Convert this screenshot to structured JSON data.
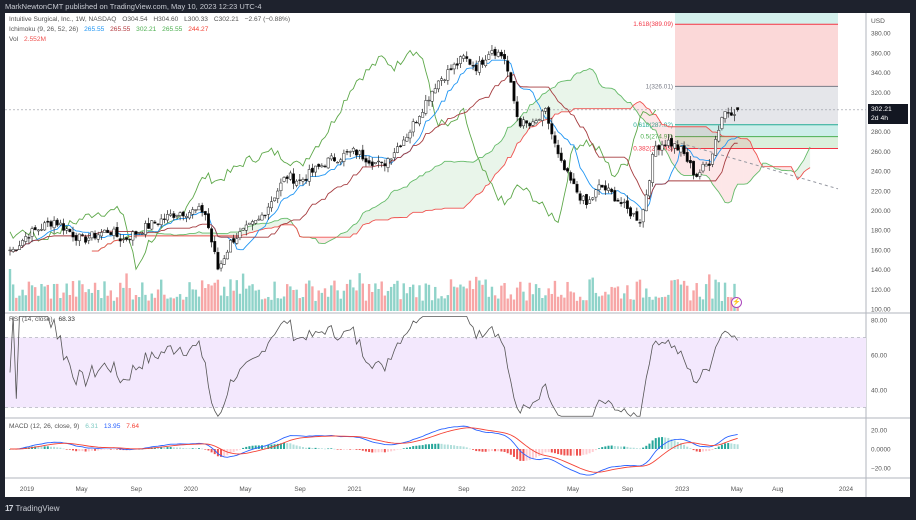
{
  "header": {
    "published_text": "MarkNewtonCMT published on TradingView.com, May 10, 2023 12:23 UTC-4"
  },
  "legend": {
    "symbol_line": "Intuitive Surgical, Inc., 1W, NASDAQ",
    "ohlc": {
      "open": "O304.54",
      "high": "H304.60",
      "low": "L300.33",
      "close": "C302.21",
      "change": "−2.67 (−0.88%)"
    },
    "ichimoku": {
      "label": "Ichimoku (9, 26, 52, 26)",
      "values": [
        {
          "text": "265.55",
          "color": "#2196f3"
        },
        {
          "text": "265.55",
          "color": "#b2393e"
        },
        {
          "text": "302.21",
          "color": "#4caf50"
        },
        {
          "text": "265.55",
          "color": "#4caf50"
        },
        {
          "text": "244.27",
          "color": "#f44336"
        }
      ]
    },
    "volume": {
      "label": "Vol",
      "value": "2.552M",
      "color": "#ef5350"
    }
  },
  "rsi_legend": {
    "label": "RSI (14, close)",
    "value": "68.33"
  },
  "macd_legend": {
    "label": "MACD (12, 26, close, 9)",
    "values": [
      {
        "text": "6.31",
        "color": "#80cbc4"
      },
      {
        "text": "13.95",
        "color": "#2962ff"
      },
      {
        "text": "7.64",
        "color": "#f44336"
      }
    ]
  },
  "price_axis": {
    "currency": "USD",
    "ticks": [
      "380.00",
      "360.00",
      "340.00",
      "320.00",
      "280.00",
      "260.00",
      "240.00",
      "220.00",
      "200.00",
      "180.00",
      "160.00",
      "140.00",
      "120.00",
      "100.00"
    ],
    "last_price": "302.21",
    "countdown": "2d 4h"
  },
  "rsi_axis": {
    "ticks": [
      "80.00",
      "60.00",
      "40.00"
    ]
  },
  "macd_axis": {
    "ticks": [
      "20.00",
      "0.0000",
      "−20.00"
    ]
  },
  "time_axis": {
    "labels": [
      "2019",
      "May",
      "Sep",
      "2020",
      "May",
      "Sep",
      "2021",
      "May",
      "Sep",
      "2022",
      "May",
      "Sep",
      "2023",
      "May",
      "Aug",
      "2024"
    ]
  },
  "fibonacci": {
    "levels": [
      {
        "label": "1.618(389.09)",
        "price": 389.09,
        "color": "#f23645"
      },
      {
        "label": "1(326.01)",
        "price": 326.01,
        "color": "#787b86"
      },
      {
        "label": "0.618(287.02)",
        "price": 287.02,
        "color": "#22ab94"
      },
      {
        "label": "0.5(274.97)",
        "price": 274.97,
        "color": "#4caf50"
      },
      {
        "label": "0.382(262.93)",
        "price": 262.93,
        "color": "#f23645"
      }
    ]
  },
  "footer": {
    "brand": "TradingView",
    "logo": "tv-logo-icon"
  },
  "chart_data": {
    "type": "candlestick",
    "title": "Intuitive Surgical, Inc. (ISRG) — Weekly, NASDAQ",
    "xlabel": "",
    "ylabel": "USD",
    "ylim": [
      100,
      390
    ],
    "x_range": [
      "2018-12",
      "2024-02"
    ],
    "close_waypoints": [
      {
        "t": "2018-12",
        "close": 160
      },
      {
        "t": "2019-01",
        "close": 175
      },
      {
        "t": "2019-03",
        "close": 190
      },
      {
        "t": "2019-05",
        "close": 170
      },
      {
        "t": "2019-07",
        "close": 180
      },
      {
        "t": "2019-08",
        "close": 170
      },
      {
        "t": "2019-10",
        "close": 185
      },
      {
        "t": "2019-12",
        "close": 198
      },
      {
        "t": "2020-02",
        "close": 200
      },
      {
        "t": "2020-03",
        "close": 140
      },
      {
        "t": "2020-04",
        "close": 170
      },
      {
        "t": "2020-06",
        "close": 190
      },
      {
        "t": "2020-08",
        "close": 235
      },
      {
        "t": "2020-09",
        "close": 230
      },
      {
        "t": "2020-11",
        "close": 250
      },
      {
        "t": "2021-01",
        "close": 260
      },
      {
        "t": "2021-03",
        "close": 245
      },
      {
        "t": "2021-05",
        "close": 280
      },
      {
        "t": "2021-07",
        "close": 330
      },
      {
        "t": "2021-09",
        "close": 355
      },
      {
        "t": "2021-10",
        "close": 345
      },
      {
        "t": "2021-11",
        "close": 365
      },
      {
        "t": "2021-12",
        "close": 355
      },
      {
        "t": "2022-01",
        "close": 290
      },
      {
        "t": "2022-02",
        "close": 285
      },
      {
        "t": "2022-03",
        "close": 300
      },
      {
        "t": "2022-04",
        "close": 250
      },
      {
        "t": "2022-05",
        "close": 225
      },
      {
        "t": "2022-06",
        "close": 205
      },
      {
        "t": "2022-07",
        "close": 225
      },
      {
        "t": "2022-08",
        "close": 215
      },
      {
        "t": "2022-09",
        "close": 200
      },
      {
        "t": "2022-10",
        "close": 190
      },
      {
        "t": "2022-11",
        "close": 265
      },
      {
        "t": "2022-12",
        "close": 270
      },
      {
        "t": "2023-01",
        "close": 260
      },
      {
        "t": "2023-02",
        "close": 235
      },
      {
        "t": "2023-03",
        "close": 250
      },
      {
        "t": "2023-04",
        "close": 300
      },
      {
        "t": "2023-05",
        "close": 302.21
      }
    ],
    "last_bar": {
      "open": 304.54,
      "high": 304.6,
      "low": 300.33,
      "close": 302.21,
      "change": -2.67,
      "change_pct": -0.88
    },
    "indicators": {
      "ichimoku": {
        "conversion": 265.55,
        "base": 265.55,
        "lagging": 302.21,
        "lead_a": 265.55,
        "lead_b": 244.27
      },
      "volume_last": "2.552M",
      "rsi": {
        "period": 14,
        "last": 68.33,
        "bands": [
          30,
          70
        ],
        "range": [
          20,
          85
        ]
      },
      "macd": {
        "fast": 12,
        "slow": 26,
        "signal": 9,
        "histogram": 6.31,
        "macd": 13.95,
        "signal_value": 7.64
      }
    },
    "annotations": [
      "Fibonacci extension 0.382–1.618",
      "Descending dashed trendline from Nov 2022 high"
    ],
    "grid": false,
    "legend_position": "top-left"
  }
}
